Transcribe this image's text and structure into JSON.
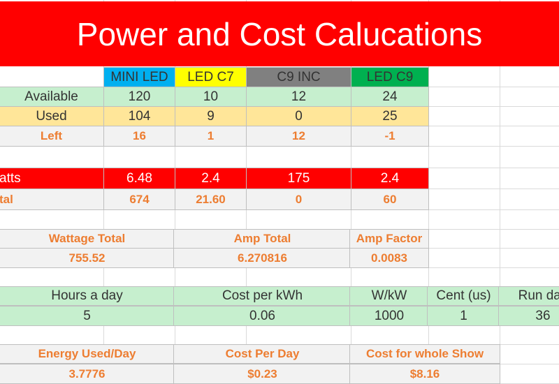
{
  "title": "Power and Cost Calucations",
  "table": {
    "header": [
      "MINI LED",
      "LED C7",
      "C9 INC",
      "LED C9"
    ],
    "rows": [
      {
        "label": "Available",
        "cells": [
          "120",
          "10",
          "12",
          "24"
        ]
      },
      {
        "label": "Used",
        "cells": [
          "104",
          "9",
          "0",
          "25"
        ]
      },
      {
        "label": "Left",
        "cells": [
          "16",
          "1",
          "12",
          "-1"
        ]
      },
      {
        "label": "atts",
        "cells": [
          "6.48",
          "2.4",
          "175",
          "2.4"
        ]
      },
      {
        "label": "tal",
        "cells": [
          "674",
          "21.60",
          "0",
          "60"
        ]
      }
    ]
  },
  "summary": {
    "headers": [
      "Wattage Total",
      "Amp Total",
      "Amp Factor"
    ],
    "values": [
      "755.52",
      "6.270816",
      "0.0083"
    ]
  },
  "settings": {
    "headers": [
      "Hours a day",
      "Cost per kWh",
      "W/kW",
      "Cent (us)",
      "Run day"
    ],
    "values": [
      "5",
      "0.06",
      "1000",
      "1",
      "36"
    ]
  },
  "cost": {
    "headers": [
      "Energy Used/Day",
      "Cost Per Day",
      "Cost for whole Show"
    ],
    "values": [
      "3.7776",
      "$0.23",
      "$8.16"
    ]
  }
}
